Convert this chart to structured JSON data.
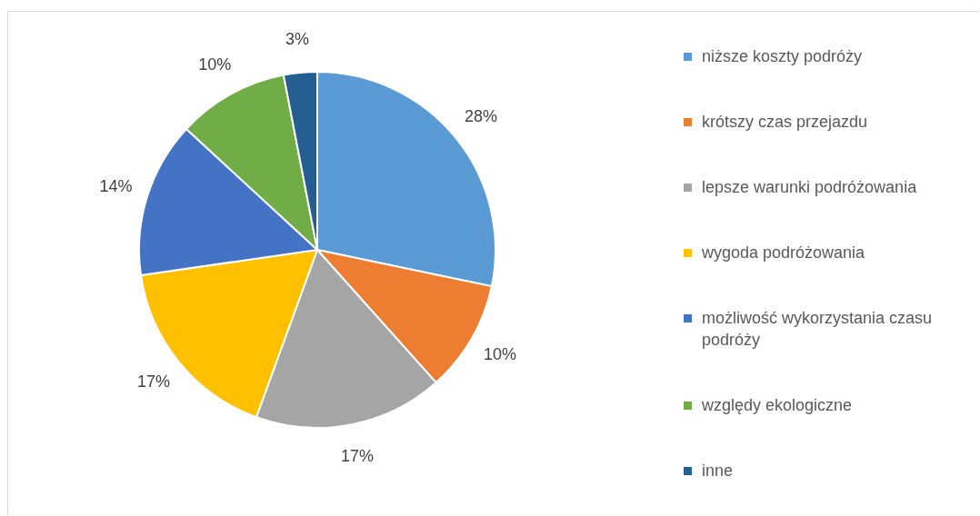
{
  "chart_data": {
    "type": "pie",
    "categories": [
      "niższe koszty podróży",
      "krótszy czas przejazdu",
      "lepsze warunki podróżowania",
      "wygoda podróżowania",
      "możliwość wykorzystania czasu podróży",
      "względy ekologiczne",
      "inne"
    ],
    "values": [
      28,
      10,
      17,
      17,
      14,
      10,
      3
    ],
    "value_labels": [
      "28%",
      "10%",
      "17%",
      "17%",
      "14%",
      "10%",
      "3%"
    ],
    "colors": [
      "#5b9bd5",
      "#ed7d31",
      "#a5a5a5",
      "#ffc000",
      "#4472c4",
      "#70ad47",
      "#255e91"
    ],
    "legend": "right"
  }
}
